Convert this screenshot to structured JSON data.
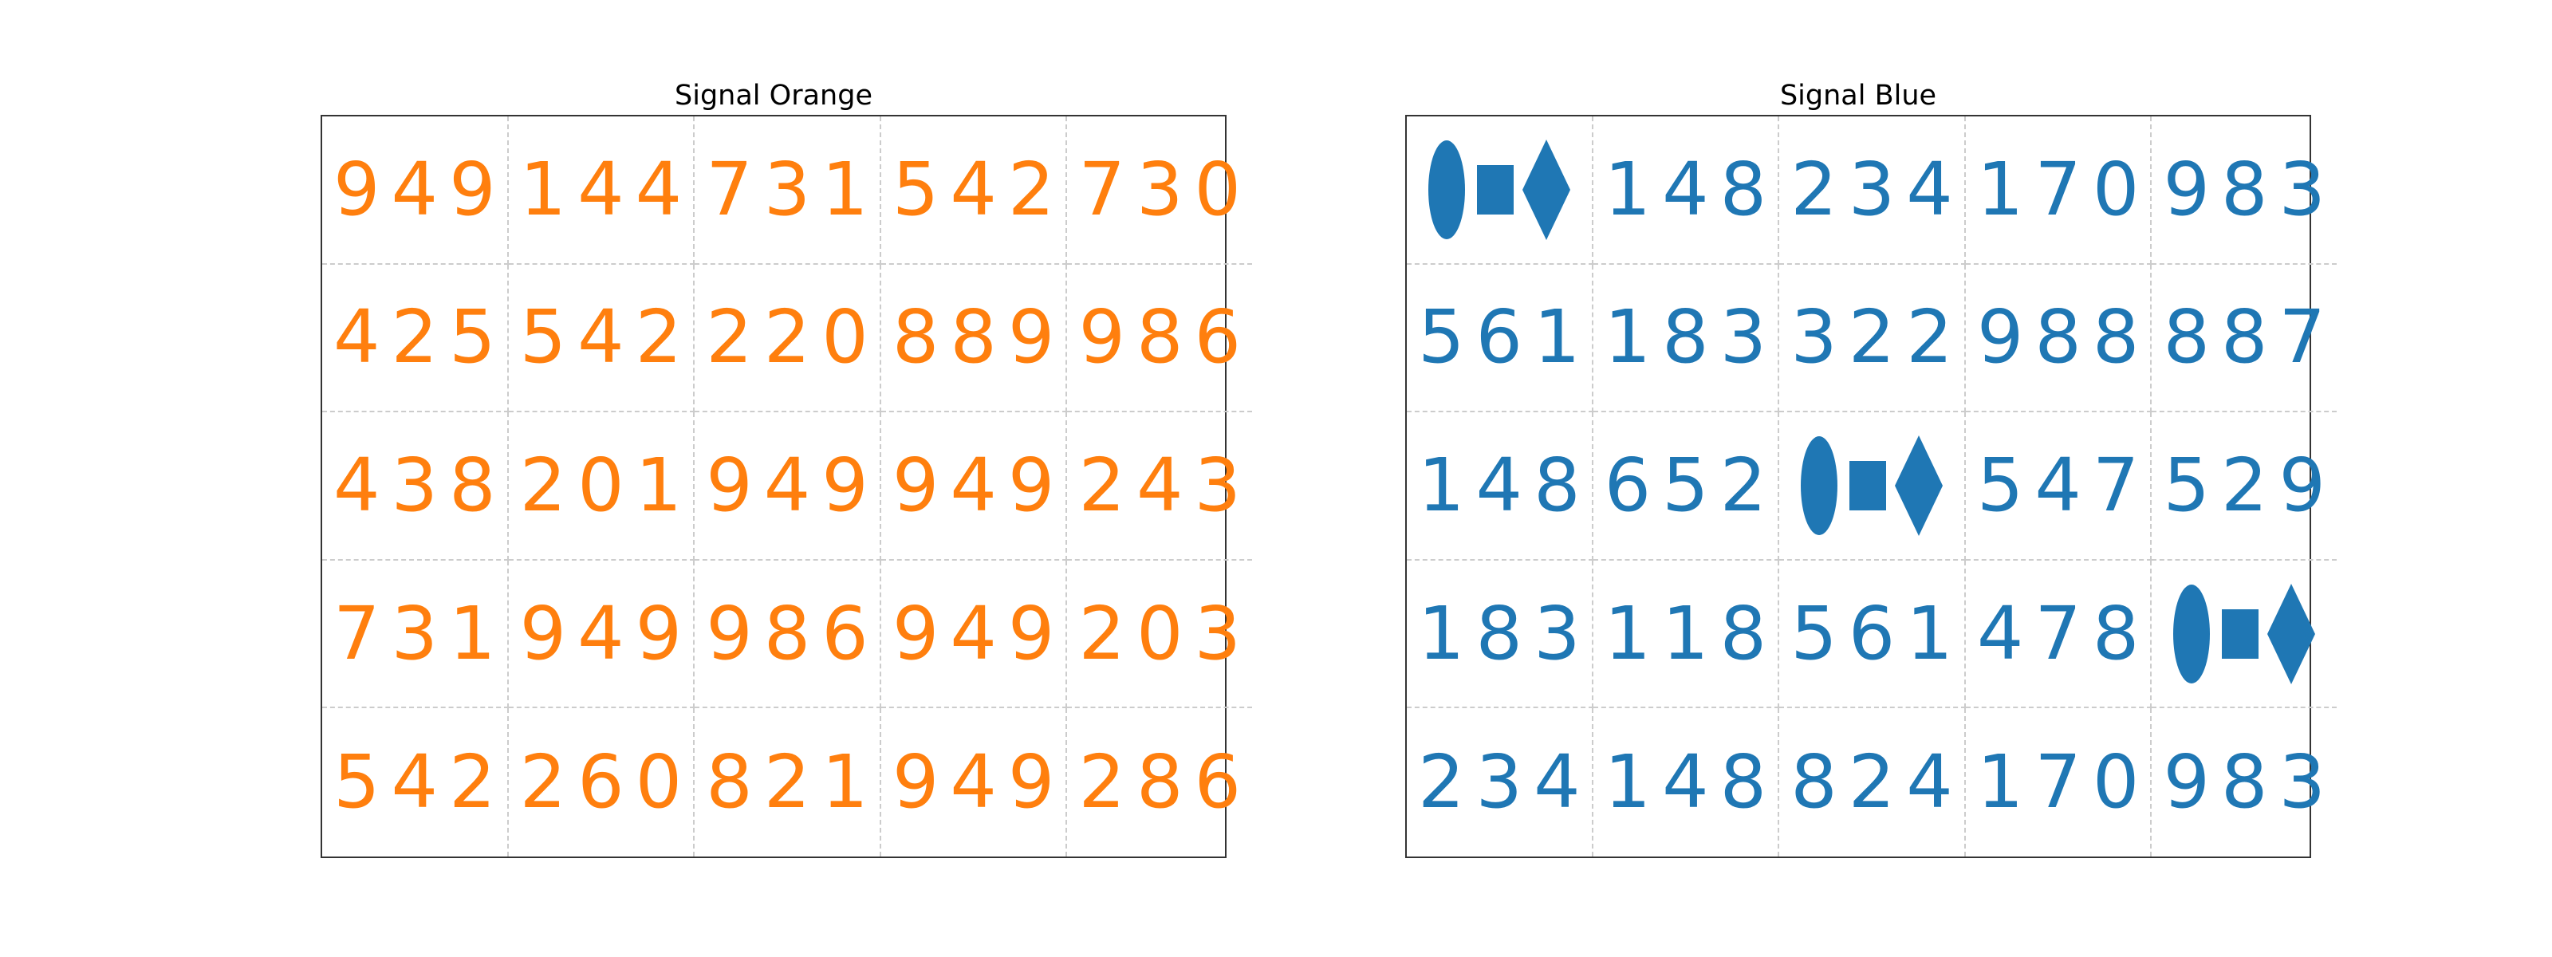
{
  "colors": {
    "orange": "#ff7f0e",
    "blue": "#1f77b4"
  },
  "left": {
    "title": "Signal Orange",
    "color": "#ff7f0e",
    "rows": [
      [
        "949",
        "144",
        "731",
        "542",
        "730"
      ],
      [
        "425",
        "542",
        "220",
        "889",
        "986"
      ],
      [
        "438",
        "201",
        "949",
        "949",
        "243"
      ],
      [
        "731",
        "949",
        "986",
        "949",
        "203"
      ],
      [
        "542",
        "260",
        "821",
        "949",
        "286"
      ]
    ]
  },
  "right": {
    "title": "Signal Blue",
    "color": "#1f77b4",
    "rows": [
      [
        null,
        "148",
        "234",
        "170",
        "983"
      ],
      [
        "561",
        "183",
        "322",
        "988",
        "887"
      ],
      [
        "148",
        "652",
        null,
        "547",
        "529"
      ],
      [
        "183",
        "118",
        "561",
        "478",
        null
      ],
      [
        "234",
        "148",
        "824",
        "170",
        "983"
      ]
    ],
    "glyph_icon": "ellipse-square-diamond-icon"
  }
}
